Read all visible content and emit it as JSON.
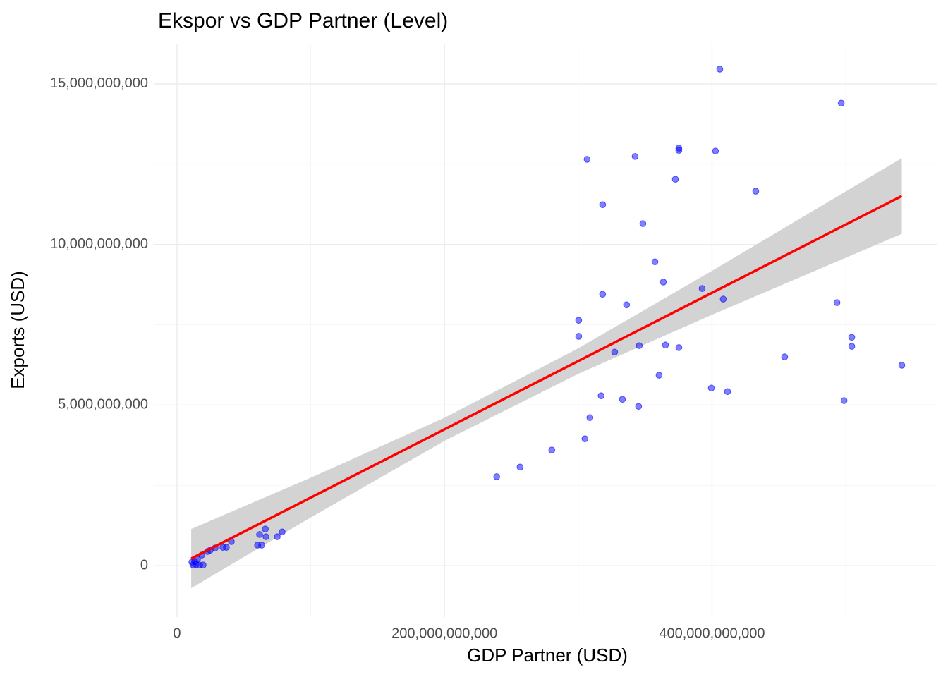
{
  "chart_data": {
    "type": "scatter",
    "title": "Ekspor vs GDP Partner (Level)",
    "x_label": "GDP Partner (USD)",
    "y_label": "Exports (USD)",
    "xlim": [
      -17400000000.0,
      568000000000.0
    ],
    "ylim": [
      -1600000000.0,
      16250000000.0
    ],
    "xticks": [
      0,
      {
        "value": 200000000000.0,
        "label": "200,000,000,000"
      },
      {
        "value": 400000000000.0,
        "label": "400,000,000,000"
      }
    ],
    "yticks": [
      0,
      {
        "value": 5000000000.0,
        "label": "5,000,000,000"
      },
      {
        "value": 10000000000.0,
        "label": "10,000,000,000"
      },
      {
        "value": 15000000000.0,
        "label": "15,000,000,000"
      }
    ],
    "xminor": [
      100000000000.0,
      300000000000.0,
      500000000000.0
    ],
    "yminor": [
      2500000000.0,
      7500000000.0,
      12500000000.0
    ],
    "grid": true,
    "series": [
      {
        "color": "#0000ff",
        "x": [
          405800000000.0,
          496600000000.0,
          375200000000.0,
          375200000000.0,
          342500000000.0,
          402600000000.0,
          306600000000.0,
          372600000000.0,
          432700000000.0,
          318200000000.0,
          348300000000.0,
          357300000000.0,
          363600000000.0,
          392600000000.0,
          318200000000.0,
          408400000000.0,
          336100000000.0,
          493400000000.0,
          300300000000.0,
          300300000000.0,
          504500000000.0,
          504500000000.0,
          365200000000.0,
          345600000000.0,
          375200000000.0,
          327200000000.0,
          454300000000.0,
          541900000000.0,
          360400000000.0,
          399500000000.0,
          411600000000.0,
          317100000000.0,
          333000000000.0,
          498700000000.0,
          345100000000.0,
          308700000000.0,
          305000000000.0,
          280200000000.0,
          256500000000.0,
          239000000000.0,
          78600000000.0,
          66000000000.0,
          74900000000.0,
          66500000000.0,
          61700000000.0,
          60200000000.0,
          63300000000.0,
          40600000000.0,
          36900000000.0,
          34300000000.0,
          28500000000.0,
          24800000000.0,
          22700000000.0,
          18500000000.0,
          15300000000.0,
          13200000000.0,
          11100000000.0,
          14200000000.0,
          16900000000.0,
          19500000000.0,
          12100000000.0
        ],
        "values": [
          15460000000.0,
          14400000000.0,
          13000000000.0,
          12930000000.0,
          12740000000.0,
          12910000000.0,
          12650000000.0,
          12030000000.0,
          11660000000.0,
          11240000000.0,
          10650000000.0,
          9460000000.0,
          8830000000.0,
          8630000000.0,
          8450000000.0,
          8300000000.0,
          8120000000.0,
          8190000000.0,
          7640000000.0,
          7140000000.0,
          7110000000.0,
          6830000000.0,
          6870000000.0,
          6850000000.0,
          6790000000.0,
          6650000000.0,
          6500000000.0,
          6240000000.0,
          5930000000.0,
          5530000000.0,
          5420000000.0,
          5290000000.0,
          5180000000.0,
          5140000000.0,
          4960000000.0,
          4610000000.0,
          3950000000.0,
          3600000000.0,
          3070000000.0,
          2770000000.0,
          1050000000.0,
          1140000000.0,
          900000000.0,
          900000000.0,
          970000000.0,
          640000000.0,
          640000000.0,
          750000000.0,
          570000000.0,
          570000000.0,
          550000000.0,
          480000000.0,
          440000000.0,
          330000000.0,
          200000000.0,
          130000000.0,
          110000000.0,
          40000000.0,
          20000000.0,
          20000000.0,
          20000000.0
        ]
      }
    ],
    "fit": {
      "color": "#ff0000",
      "band_color": "#d3d3d3",
      "x": [
        10600000000.0,
        100000000000.0,
        200000000000.0,
        300000000000.0,
        400000000000.0,
        541900000000.0
      ],
      "y": [
        220000000.0,
        2120000000.0,
        4245000000.0,
        6370000000.0,
        8495000000.0,
        11510000000.0
      ],
      "ymin": [
        -701000000.0,
        1501000000.0,
        3885000000.0,
        5973000000.0,
        7811000000.0,
        10331000000.0
      ],
      "ymax": [
        1141000000.0,
        2739000000.0,
        4605000000.0,
        6767000000.0,
        9179000000.0,
        12689000000.0
      ]
    }
  }
}
